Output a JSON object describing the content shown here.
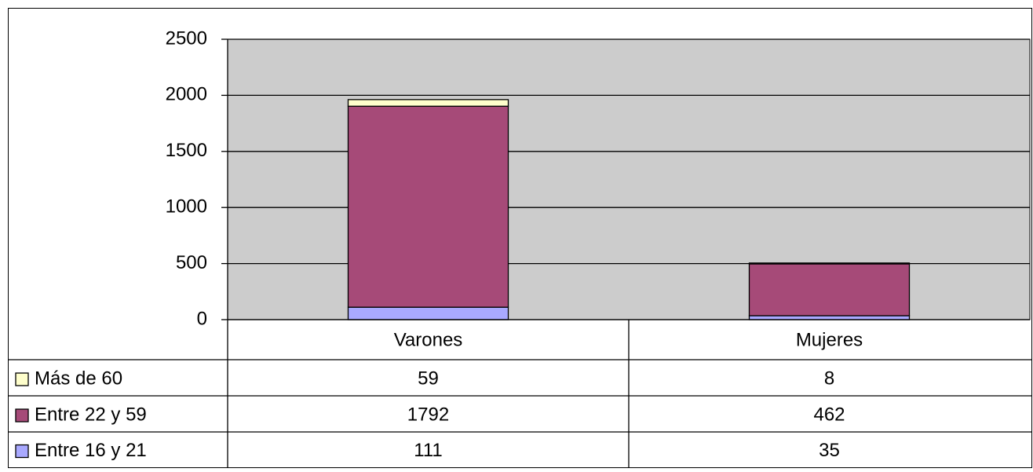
{
  "chart_data": {
    "type": "stacked_bar",
    "categories": [
      "Varones",
      "Mujeres"
    ],
    "series": [
      {
        "name": "Entre 16 y 21",
        "color": "#a9a9ff",
        "values": [
          111,
          35
        ]
      },
      {
        "name": "Entre 22 y 59",
        "color": "#a64a78",
        "values": [
          1792,
          462
        ]
      },
      {
        "name": "Más de 60",
        "color": "#ffffcc",
        "values": [
          59,
          8
        ]
      }
    ],
    "ylim": [
      0,
      2500
    ],
    "yticks": [
      0,
      500,
      1000,
      1500,
      2000,
      2500
    ],
    "grid": true,
    "plot_background": "#cccccc",
    "data_table": true
  }
}
